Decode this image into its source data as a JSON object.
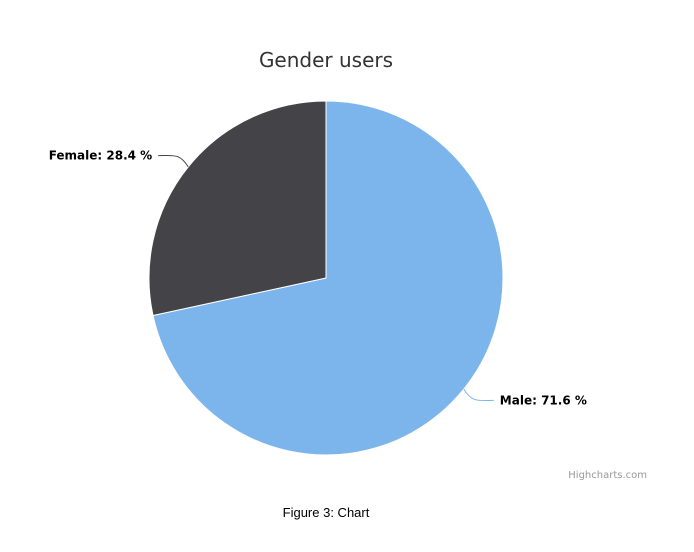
{
  "chart_data": {
    "type": "pie",
    "title": "Gender users",
    "series": [
      {
        "data": [
          {
            "name": "Male",
            "value": 71.6,
            "label": "Male: 71.6 %",
            "color": "#7cb5ec"
          },
          {
            "name": "Female",
            "value": 28.4,
            "label": "Female: 28.4 %",
            "color": "#434348"
          }
        ]
      }
    ],
    "legend": "none"
  },
  "credits": "Highcharts.com",
  "caption": "Figure 3: Chart"
}
